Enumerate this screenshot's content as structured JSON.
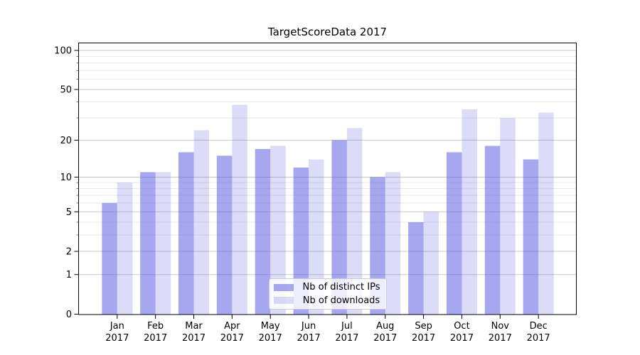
{
  "title": "TargetScoreData 2017",
  "chart_data": {
    "type": "bar",
    "title": "TargetScoreData 2017",
    "categories": [
      "Jan",
      "Feb",
      "Mar",
      "Apr",
      "May",
      "Jun",
      "Jul",
      "Aug",
      "Sep",
      "Oct",
      "Nov",
      "Dec"
    ],
    "year": "2017",
    "series": [
      {
        "name": "Nb of distinct IPs",
        "values": [
          6,
          11,
          16,
          15,
          17,
          12,
          20,
          10,
          4,
          16,
          18,
          14
        ],
        "rgba": "rgba(80,80,224,0.5)"
      },
      {
        "name": "Nb of downloads",
        "values": [
          9,
          11,
          24,
          38,
          18,
          14,
          25,
          11,
          5,
          35,
          30,
          33
        ],
        "rgba": "rgba(80,80,224,0.2)"
      }
    ],
    "y_axis": {
      "scale": "log1p",
      "tick_labels": [
        0,
        1,
        2,
        5,
        10,
        20,
        50,
        100
      ],
      "minor_gridlines": [
        3,
        4,
        6,
        7,
        8,
        9,
        30,
        40,
        60,
        70,
        80,
        90
      ],
      "top_value": 112
    },
    "grid": true,
    "legend_position": "inside lower-center"
  },
  "colors": {
    "grid_major": "#c9c9c9",
    "grid_minor": "#e8e8e8",
    "spine": "#000000",
    "text": "#000000",
    "minor_tick": "#555555",
    "legend_bg": "rgba(255,255,255,0.8)",
    "legend_border": "#cccccc"
  }
}
